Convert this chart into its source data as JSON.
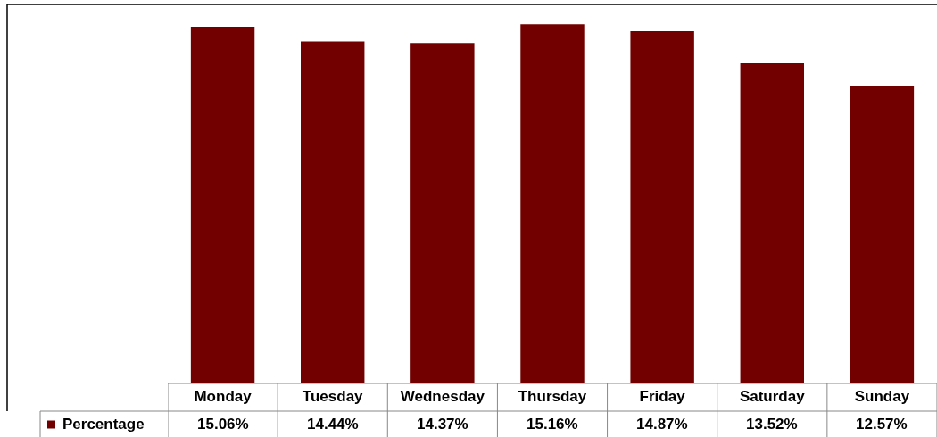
{
  "chart_data": {
    "type": "bar",
    "categories": [
      "Monday",
      "Tuesday",
      "Wednesday",
      "Thursday",
      "Friday",
      "Saturday",
      "Sunday"
    ],
    "series": [
      {
        "name": "Percentage",
        "color": "#730000",
        "values": [
          15.06,
          14.44,
          14.37,
          15.16,
          14.87,
          13.52,
          12.57
        ],
        "value_labels": [
          "15.06%",
          "14.44%",
          "14.37%",
          "15.16%",
          "14.87%",
          "13.52%",
          "12.57%"
        ]
      }
    ],
    "ylim": [
      0,
      16
    ],
    "tick_labels": "x",
    "grid": false,
    "legend": "bottom left"
  }
}
